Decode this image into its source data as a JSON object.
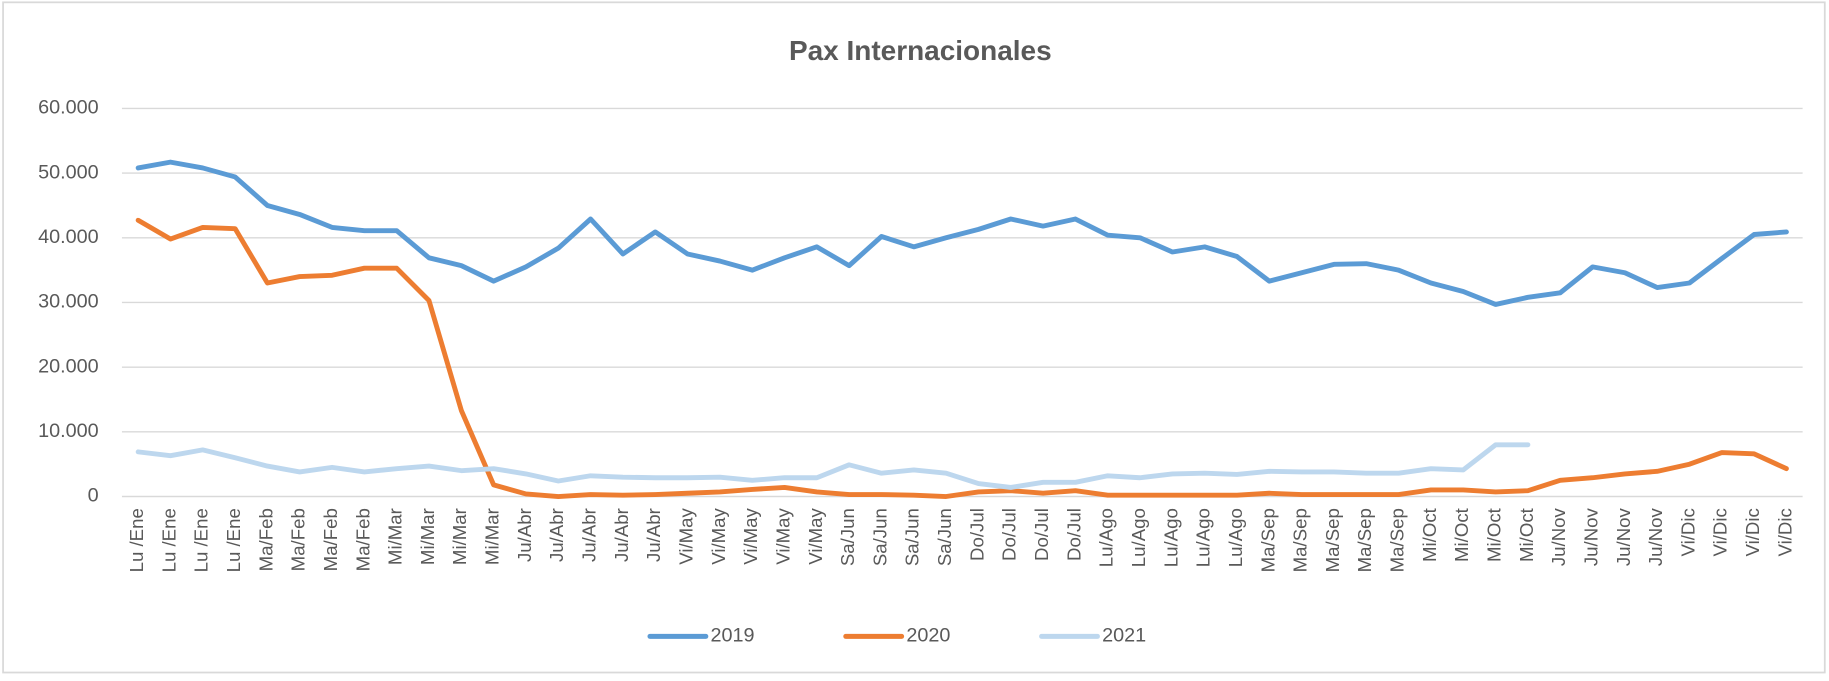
{
  "chart_data": {
    "type": "line",
    "title": "Pax Internacionales",
    "categories": [
      "Lu /Ene",
      "Lu /Ene",
      "Lu /Ene",
      "Lu /Ene",
      "Ma/Feb",
      "Ma/Feb",
      "Ma/Feb",
      "Ma/Feb",
      "Mi/Mar",
      "Mi/Mar",
      "Mi/Mar",
      "Mi/Mar",
      "Ju/Abr",
      "Ju/Abr",
      "Ju/Abr",
      "Ju/Abr",
      "Ju/Abr",
      "Vi/May",
      "Vi/May",
      "Vi/May",
      "Vi/May",
      "Vi/May",
      "Sa/Jun",
      "Sa/Jun",
      "Sa/Jun",
      "Sa/Jun",
      "Do/Jul",
      "Do/Jul",
      "Do/Jul",
      "Do/Jul",
      "Lu/Ago",
      "Lu/Ago",
      "Lu/Ago",
      "Lu/Ago",
      "Lu/Ago",
      "Ma/Sep",
      "Ma/Sep",
      "Ma/Sep",
      "Ma/Sep",
      "Ma/Sep",
      "Mi/Oct",
      "Mi/Oct",
      "Mi/Oct",
      "Mi/Oct",
      "Ju/Nov",
      "Ju/Nov",
      "Ju/Nov",
      "Ju/Nov",
      "Vi/Dic",
      "Vi/Dic",
      "Vi/Dic",
      "Vi/Dic"
    ],
    "series": [
      {
        "name": "2019",
        "color": "#5b9bd5",
        "values": [
          50800,
          51700,
          50800,
          49400,
          45000,
          43600,
          41600,
          41100,
          41100,
          36900,
          35700,
          33300,
          35500,
          38400,
          42900,
          37500,
          40900,
          37500,
          36400,
          35000,
          36900,
          38600,
          35700,
          40200,
          38600,
          40000,
          41300,
          42900,
          41800,
          42900,
          40400,
          40000,
          37800,
          38600,
          37100,
          33300,
          34600,
          35900,
          36000,
          35000,
          33000,
          31700,
          29700,
          30800,
          31500,
          35500,
          34600,
          32300,
          33000,
          36800,
          40500,
          40900
        ]
      },
      {
        "name": "2020",
        "color": "#ed7d31",
        "values": [
          42700,
          39800,
          41600,
          41400,
          33000,
          34000,
          34200,
          35300,
          35300,
          30300,
          13300,
          1800,
          400,
          0,
          300,
          200,
          300,
          500,
          700,
          1100,
          1400,
          700,
          300,
          300,
          200,
          0,
          700,
          900,
          500,
          900,
          200,
          200,
          200,
          200,
          200,
          500,
          300,
          300,
          300,
          300,
          1000,
          1000,
          700,
          900,
          2500,
          2900,
          3500,
          3900,
          5000,
          6800,
          6600,
          4300
        ]
      },
      {
        "name": "2021",
        "color": "#bdd7ee",
        "values": [
          6900,
          6300,
          7200,
          6000,
          4700,
          3800,
          4500,
          3800,
          4300,
          4700,
          4000,
          4300,
          3500,
          2400,
          3200,
          3000,
          2900,
          2900,
          3000,
          2500,
          2900,
          2900,
          4900,
          3600,
          4100,
          3600,
          2000,
          1400,
          2200,
          2200,
          3200,
          2900,
          3500,
          3600,
          3400,
          3900,
          3800,
          3800,
          3600,
          3600,
          4300,
          4100,
          8000,
          8000,
          null,
          null,
          null,
          null,
          null,
          null,
          null,
          null
        ]
      }
    ],
    "ylim": [
      0,
      60000
    ],
    "yticks": [
      0,
      {
        "value": 10000,
        "label": "10.000"
      },
      {
        "value": 20000,
        "label": "20.000"
      },
      {
        "value": 30000,
        "label": "30.000"
      },
      {
        "value": 40000,
        "label": "40.000"
      },
      {
        "value": 50000,
        "label": "50.000"
      },
      {
        "value": 60000,
        "label": "60.000"
      }
    ],
    "grid": true,
    "legend": "bottom"
  }
}
